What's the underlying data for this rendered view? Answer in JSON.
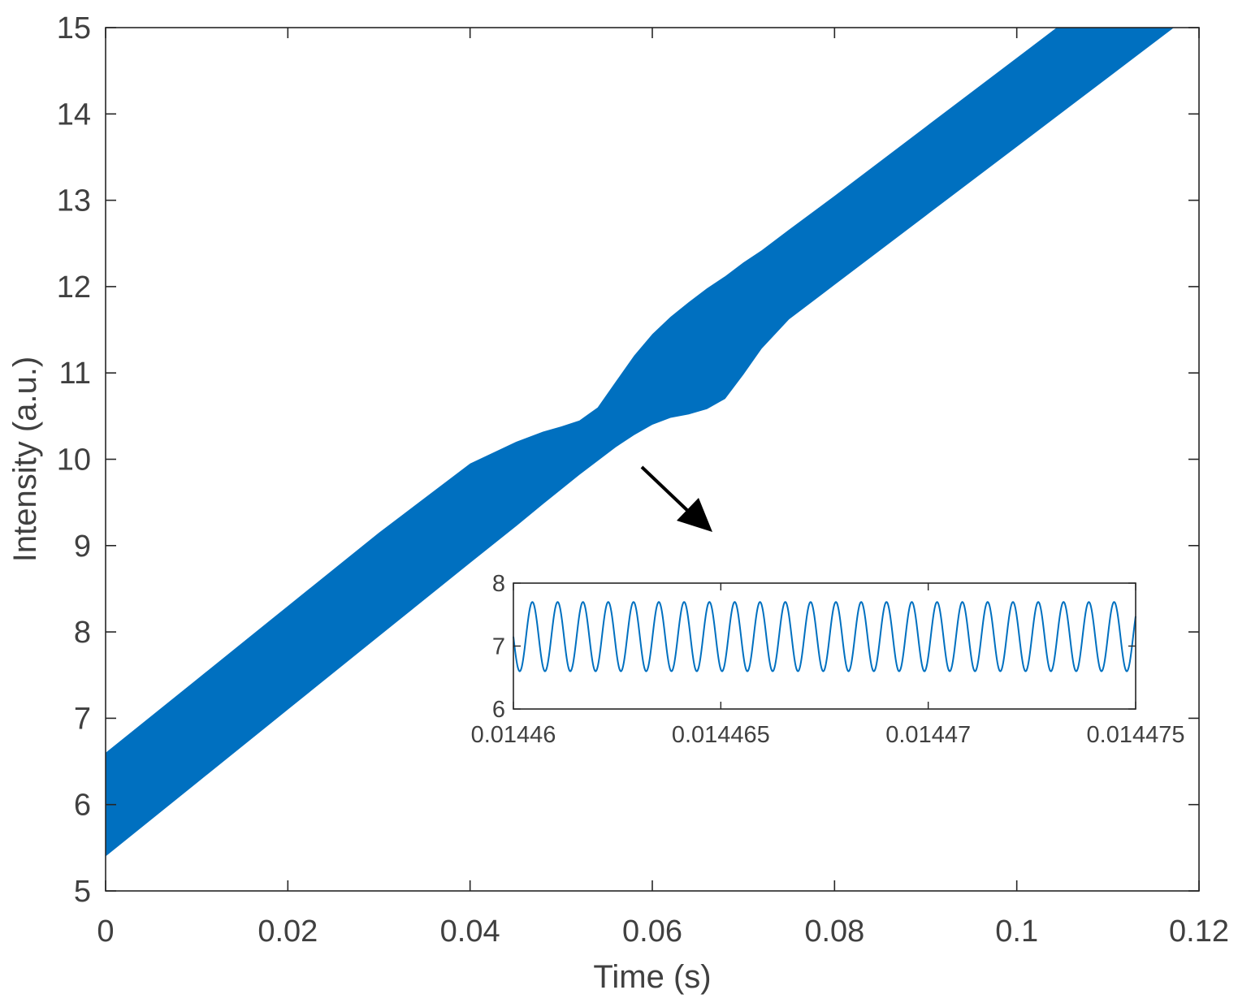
{
  "chart_data": [
    {
      "type": "line",
      "title": "",
      "xlabel": "Time (s)",
      "ylabel": "Intensity (a.u.)",
      "xlim": [
        0,
        0.12
      ],
      "ylim": [
        5,
        15
      ],
      "xticks": [
        0,
        0.02,
        0.04,
        0.06,
        0.08,
        0.1,
        0.12
      ],
      "xtick_labels": [
        "0",
        "0.02",
        "0.04",
        "0.06",
        "0.08",
        "0.1",
        "0.12"
      ],
      "yticks": [
        5,
        6,
        7,
        8,
        9,
        10,
        11,
        12,
        13,
        14,
        15
      ],
      "ytick_labels": [
        "5",
        "6",
        "7",
        "8",
        "9",
        "10",
        "11",
        "12",
        "13",
        "14",
        "15"
      ],
      "grid": false,
      "series_color": "#0070C0",
      "band": {
        "x": [
          0,
          0.01,
          0.02,
          0.03,
          0.04,
          0.045,
          0.048,
          0.05,
          0.052,
          0.054,
          0.056,
          0.058,
          0.06,
          0.062,
          0.064,
          0.066,
          0.068,
          0.07,
          0.072,
          0.075,
          0.08,
          0.09,
          0.1,
          0.11,
          0.12
        ],
        "upper": [
          6.6,
          7.45,
          8.3,
          9.15,
          9.95,
          10.2,
          10.32,
          10.38,
          10.45,
          10.6,
          10.9,
          11.2,
          11.45,
          11.65,
          11.82,
          11.98,
          12.12,
          12.28,
          12.42,
          12.66,
          13.05,
          13.85,
          14.65,
          15.45,
          16.25
        ],
        "lower": [
          5.4,
          6.25,
          7.1,
          7.95,
          8.8,
          9.22,
          9.48,
          9.65,
          9.82,
          9.98,
          10.14,
          10.28,
          10.4,
          10.48,
          10.52,
          10.58,
          10.7,
          10.98,
          11.28,
          11.62,
          12.02,
          12.82,
          13.62,
          14.42,
          15.22
        ]
      }
    },
    {
      "type": "line",
      "title": "",
      "xlabel": "",
      "ylabel": "",
      "xlim": [
        0.01446,
        0.014475
      ],
      "ylim": [
        6,
        8
      ],
      "xticks": [
        0.01446,
        0.014465,
        0.01447,
        0.014475
      ],
      "xtick_labels": [
        "0.01446",
        "0.014465",
        "0.01447",
        "0.014475"
      ],
      "yticks": [
        6,
        7,
        8
      ],
      "ytick_labels": [
        "6",
        "7",
        "8"
      ],
      "grid": false,
      "series_color": "#0070C0",
      "signal": {
        "function": "sine",
        "mean": 7.15,
        "amplitude": 0.55,
        "cycles_in_window": 24.6,
        "phase_deg": 180
      }
    }
  ],
  "annotation": {
    "type": "arrow",
    "color": "#000000"
  }
}
